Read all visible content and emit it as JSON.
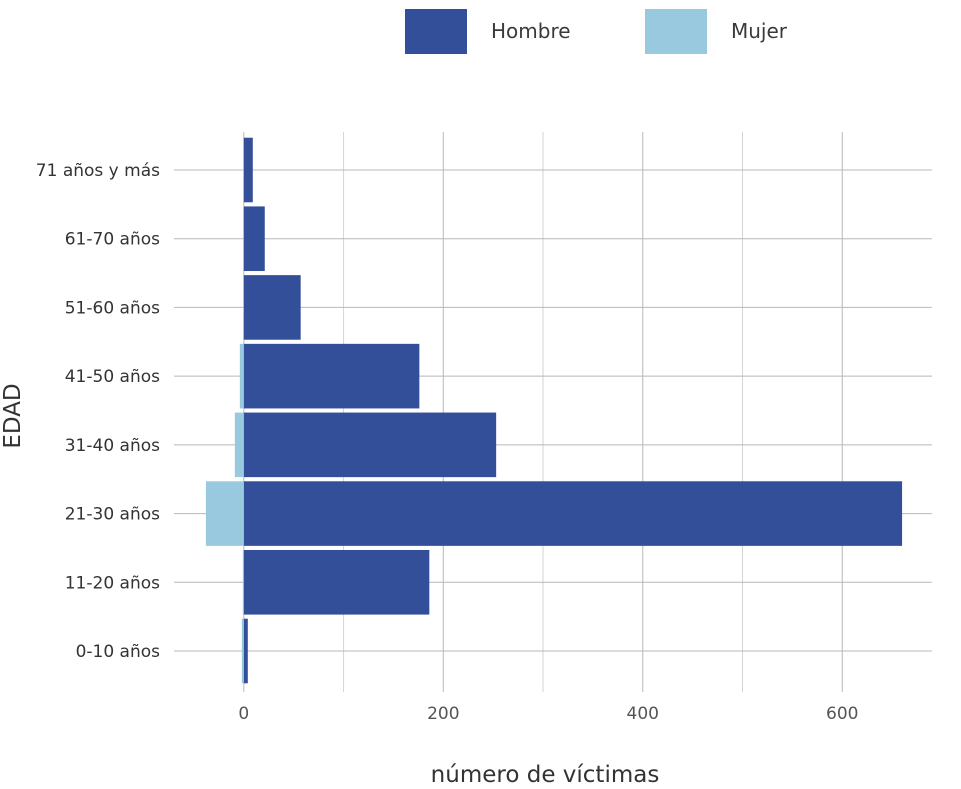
{
  "chart_data": {
    "type": "bar",
    "orientation": "horizontal",
    "title": "",
    "xlabel": "número de víctimas",
    "ylabel": "EDAD",
    "categories": [
      "0-10 años",
      "11-20 años",
      "21-30 años",
      "31-40 años",
      "41-50 años",
      "51-60 años",
      "61-70 años",
      "71 años y más"
    ],
    "series": [
      {
        "name": "Hombre",
        "color": "#344f9a",
        "values": [
          4,
          186,
          660,
          253,
          176,
          57,
          21,
          9
        ]
      },
      {
        "name": "Mujer",
        "color": "#99c9df",
        "values": [
          -2,
          -1,
          -38,
          -9,
          -4,
          0,
          0,
          0
        ]
      }
    ],
    "xlim": [
      -70,
      690
    ],
    "xticks": [
      0,
      200,
      400,
      600
    ],
    "xtick_labels": [
      "0",
      "200",
      "400",
      "600"
    ],
    "grid": true,
    "legend_position": "top"
  }
}
